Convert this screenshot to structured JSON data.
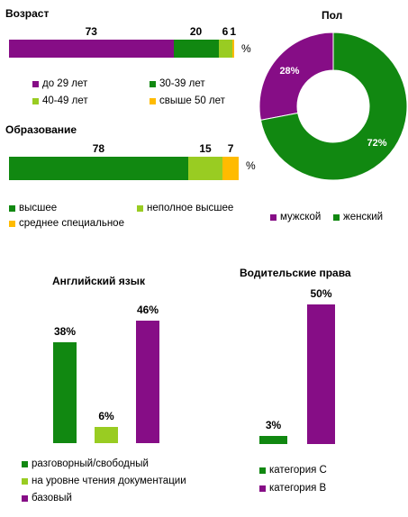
{
  "colors": {
    "purple": "#860D86",
    "green": "#118811",
    "lime": "#99CC22",
    "yellow": "#FFBB00"
  },
  "chart_data": [
    {
      "type": "bar",
      "orientation": "horizontal-stacked",
      "title": "Возраст",
      "unit": "%",
      "series": [
        {
          "name": "до 29 лет",
          "value": 73,
          "color": "#860D86"
        },
        {
          "name": "30-39 лет",
          "value": 20,
          "color": "#118811"
        },
        {
          "name": "40-49  лет",
          "value": 6,
          "color": "#99CC22"
        },
        {
          "name": "свыше  50  лет",
          "value": 1,
          "color": "#FFBB00"
        }
      ],
      "legend": "bottom"
    },
    {
      "type": "bar",
      "orientation": "horizontal-stacked",
      "title": "Образование",
      "unit": "%",
      "series": [
        {
          "name": "высшее",
          "value": 78,
          "color": "#118811"
        },
        {
          "name": "неполное высшее",
          "value": 15,
          "color": "#99CC22"
        },
        {
          "name": "среднее специальное",
          "value": 7,
          "color": "#FFBB00"
        }
      ],
      "legend": "bottom"
    },
    {
      "type": "pie",
      "style": "donut",
      "title": "Пол",
      "series": [
        {
          "name": "мужской",
          "value": 28,
          "label": "28%",
          "color": "#860D86"
        },
        {
          "name": "женский",
          "value": 72,
          "label": "72%",
          "color": "#118811"
        }
      ],
      "legend": "bottom"
    },
    {
      "type": "bar",
      "title": "Английский язык",
      "series": [
        {
          "name": "разговорный/свободный",
          "value": 38,
          "label": "38%",
          "color": "#118811"
        },
        {
          "name": "на уровне чтения документации",
          "value": 6,
          "label": "6%",
          "color": "#99CC22"
        },
        {
          "name": "базовый",
          "value": 46,
          "label": "46%",
          "color": "#860D86"
        }
      ],
      "legend": "bottom"
    },
    {
      "type": "bar",
      "title": "Водительские права",
      "series": [
        {
          "name": "категория С",
          "value": 3,
          "label": "3%",
          "color": "#118811"
        },
        {
          "name": "категория В",
          "value": 50,
          "label": "50%",
          "color": "#860D86"
        }
      ],
      "legend": "bottom"
    }
  ]
}
